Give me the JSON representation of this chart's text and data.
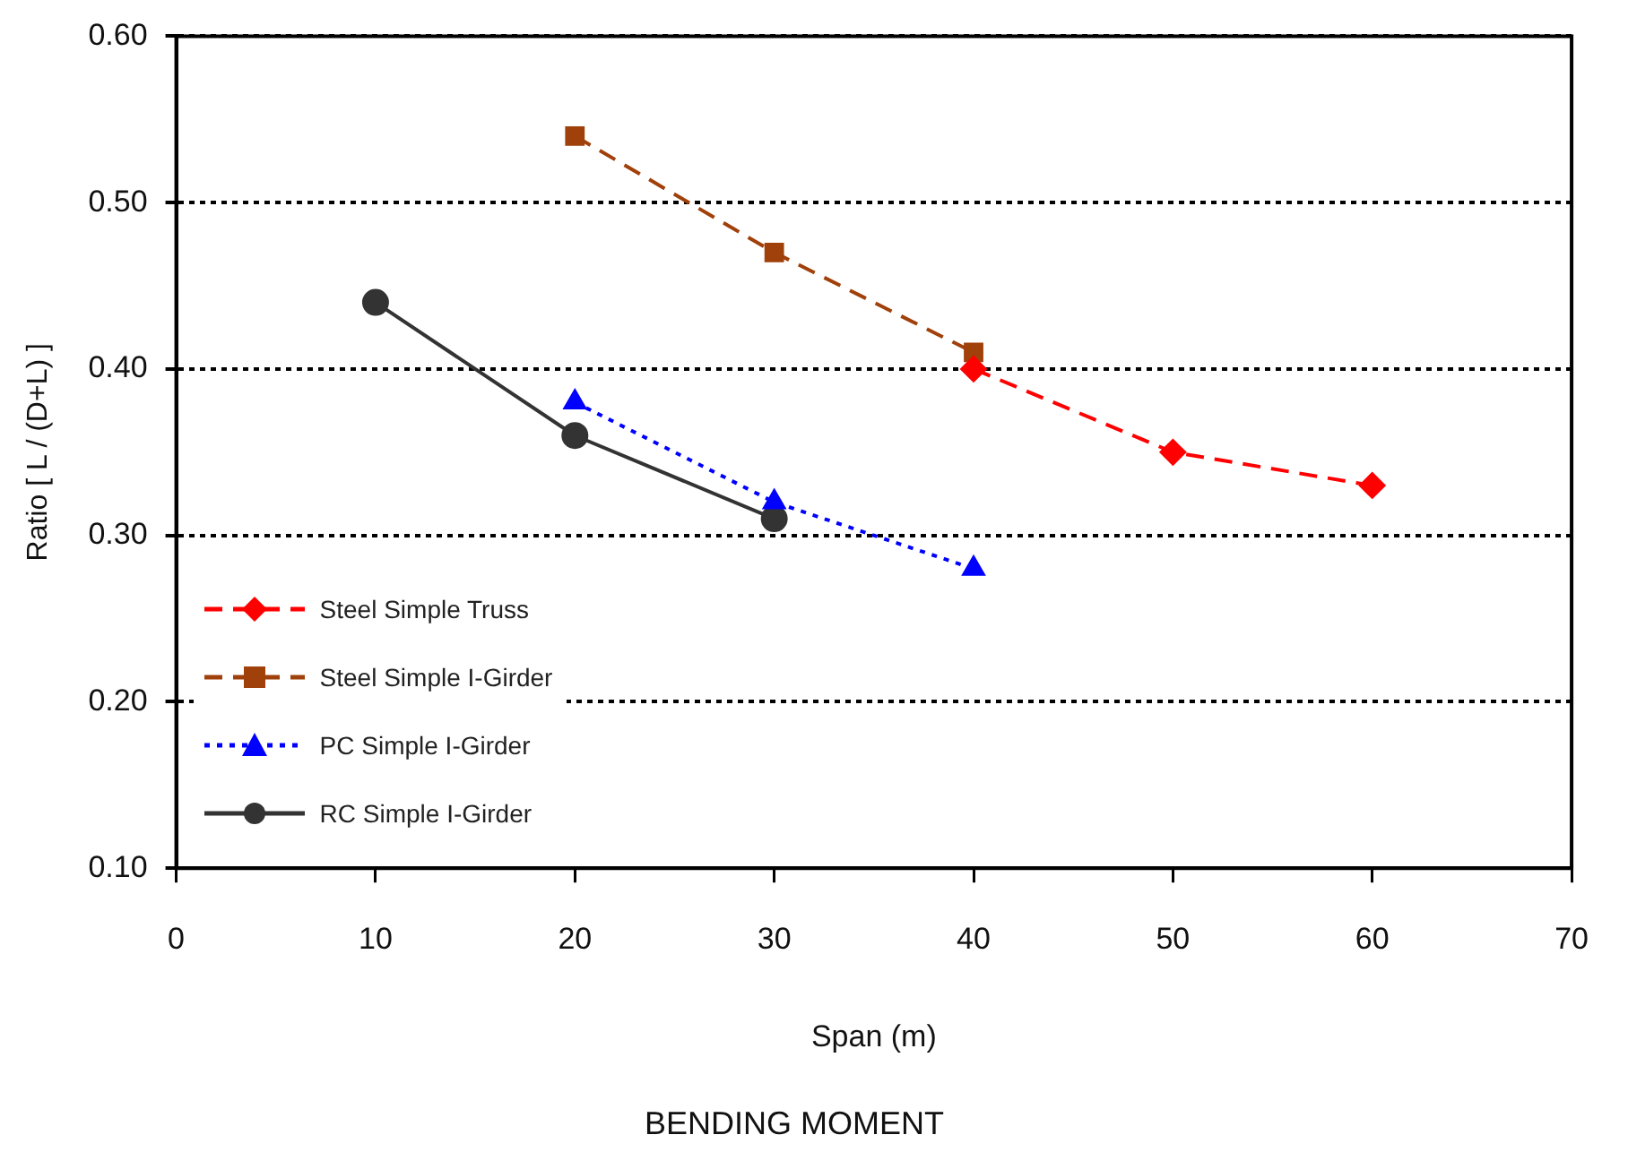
{
  "chart_data": {
    "type": "line",
    "title": "BENDING MOMENT",
    "xlabel": "Span (m)",
    "ylabel": "Ratio [ L / (D+L) ]",
    "x": [
      10,
      20,
      30,
      40,
      50,
      60
    ],
    "xlim": [
      0,
      70
    ],
    "xticks": [
      0,
      10,
      20,
      30,
      40,
      50,
      60,
      70
    ],
    "ylim": [
      0.1,
      0.6
    ],
    "yticks": [
      {
        "value": 0.1,
        "label": "0.10"
      },
      {
        "value": 0.2,
        "label": "0.20"
      },
      {
        "value": 0.3,
        "label": "0.30"
      },
      {
        "value": 0.4,
        "label": "0.40"
      },
      {
        "value": 0.5,
        "label": "0.50"
      },
      {
        "value": 0.6,
        "label": "0.60"
      }
    ],
    "grid": "y",
    "legend": "bottom left",
    "series": [
      {
        "name": "Steel Simple Truss",
        "color": "#ff0000",
        "values": [
          null,
          null,
          null,
          0.4,
          0.35,
          0.33
        ],
        "marker": "diamond",
        "line_style": "dashed"
      },
      {
        "name": "Steel Simple I-Girder",
        "color": "#a0400a",
        "values": [
          null,
          0.54,
          0.47,
          0.41,
          null,
          null
        ],
        "marker": "square",
        "line_style": "dashed"
      },
      {
        "name": "PC Simple I-Girder",
        "color": "#0000ff",
        "values": [
          null,
          0.38,
          0.32,
          0.28,
          null,
          null
        ],
        "marker": "triangle",
        "line_style": "dotted"
      },
      {
        "name": "RC Simple I-Girder",
        "color": "#333333",
        "values": [
          0.44,
          0.36,
          0.31,
          null,
          null,
          null
        ],
        "marker": "circle",
        "line_style": "solid"
      }
    ]
  }
}
